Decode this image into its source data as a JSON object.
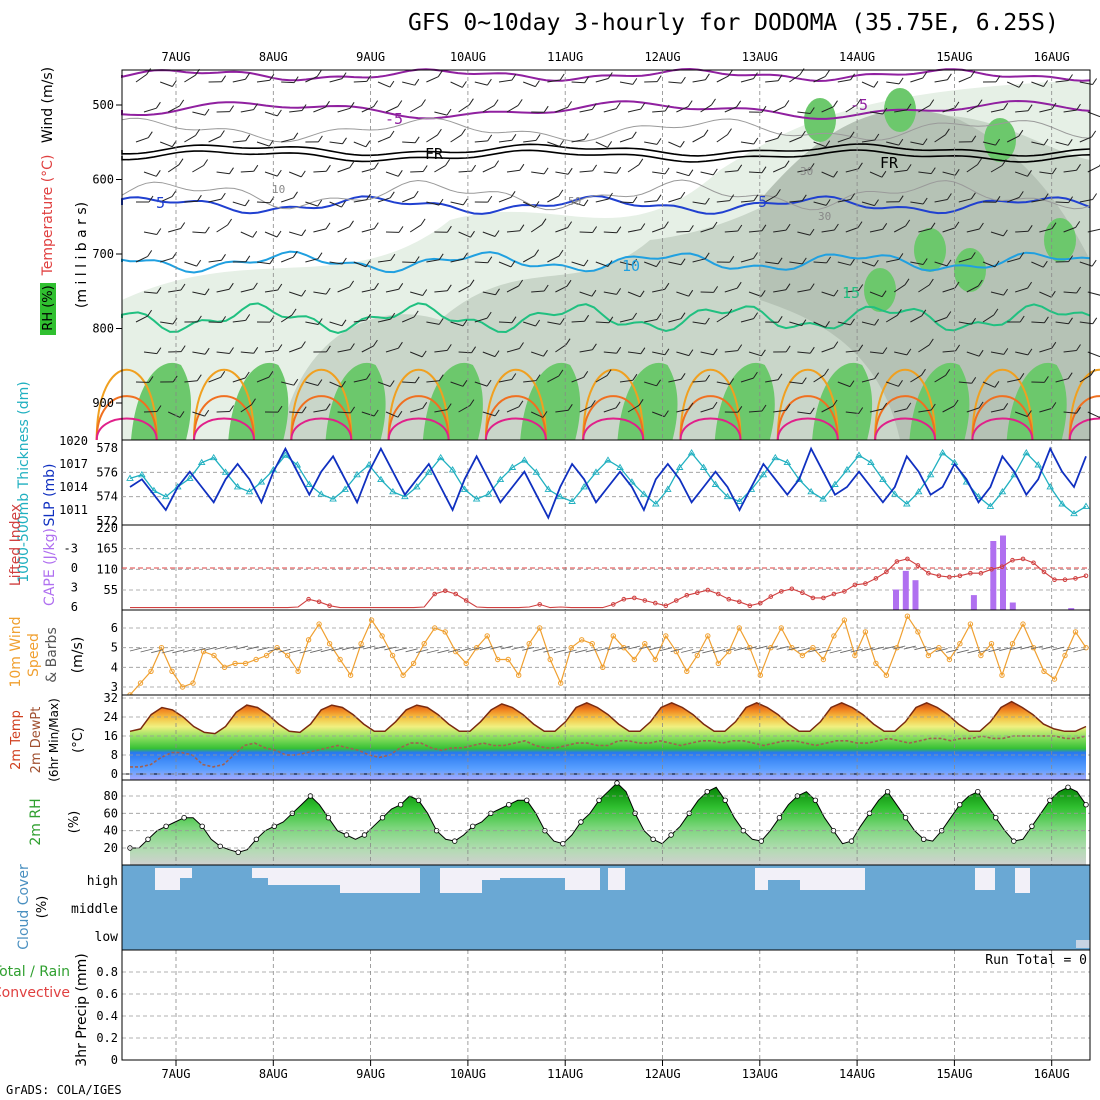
{
  "title": "GFS 0~10day 3-hourly for DODOMA (35.75E, 6.25S)",
  "credit": "GrADS: COLA/IGES",
  "dates": [
    "7AUG",
    "8AUG",
    "9AUG",
    "10AUG",
    "11AUG",
    "12AUG",
    "13AUG",
    "14AUG",
    "15AUG",
    "16AUG"
  ],
  "chart_data": [
    {
      "type": "heatmap",
      "name": "upper-air",
      "labels": {
        "wind": "Wind (m/s)",
        "temp": "Temperature (°C)",
        "rh": "RH (%)",
        "axis": "(m i l l i b a r s)"
      },
      "y_ticks": [
        "500",
        "600",
        "700",
        "800",
        "900"
      ],
      "contour_labels": [
        "-5",
        "-5",
        "FR",
        "FR",
        "5",
        "5",
        "10",
        "15",
        "10",
        "30",
        "30",
        "50"
      ],
      "ylim": [
        1000,
        450
      ]
    },
    {
      "type": "line",
      "name": "slp-thickness",
      "labels": {
        "thickness": "1000-500mb Thickness (dm)",
        "slp": "SLP (mb)"
      },
      "left_ticks": [
        "578",
        "576",
        "574",
        "572"
      ],
      "right_ticks": [
        "1020",
        "1017",
        "1014",
        "1011"
      ],
      "slp": [
        1014,
        1015,
        1013,
        1011,
        1014,
        1016,
        1014,
        1012,
        1015,
        1017,
        1015,
        1012,
        1016,
        1019,
        1016,
        1013,
        1016,
        1018,
        1015,
        1012,
        1016,
        1019,
        1016,
        1013,
        1015,
        1017,
        1014,
        1011,
        1015,
        1018,
        1015,
        1012,
        1014,
        1016,
        1013,
        1010,
        1014,
        1017,
        1015,
        1012,
        1014,
        1016,
        1014,
        1011,
        1015,
        1017,
        1015,
        1012,
        1014,
        1016,
        1014,
        1011,
        1014,
        1017,
        1015,
        1013,
        1015,
        1019,
        1016,
        1013,
        1014,
        1016,
        1014,
        1012,
        1014,
        1018,
        1016,
        1013,
        1014,
        1017,
        1015,
        1012,
        1014,
        1018,
        1016,
        1013,
        1015,
        1019,
        1016,
        1014,
        1018
      ],
      "thickness": [
        575.5,
        575.8,
        574.5,
        574,
        574.8,
        575.5,
        576.8,
        577.2,
        576,
        574.8,
        574.4,
        575.2,
        576.2,
        577.4,
        576.6,
        575,
        574.2,
        573.8,
        574.6,
        575.8,
        576.6,
        575.4,
        574.4,
        574,
        574.8,
        576,
        577.2,
        576.2,
        574.6,
        573.8,
        574.2,
        575.4,
        576.4,
        577,
        576,
        574.6,
        574,
        573.6,
        574.8,
        576,
        577,
        576.4,
        575.2,
        574.2,
        573.4,
        574.6,
        576.4,
        577.6,
        576.4,
        575,
        574,
        573.6,
        574.6,
        575.8,
        577.2,
        576.8,
        575.4,
        574.4,
        573.8,
        575,
        576.2,
        577.4,
        576.8,
        575.4,
        574.2,
        573.4,
        574.4,
        575.8,
        577.6,
        576.8,
        575.2,
        574,
        573.2,
        574.4,
        575.8,
        577.6,
        576.6,
        574.8,
        573.4,
        572.6,
        573.2
      ]
    },
    {
      "type": "bar",
      "name": "cape-lifted-index",
      "labels": {
        "li": "Lifted Index",
        "cape": "CAPE (J/kg)"
      },
      "left_ticks": [
        "-3",
        "0",
        "3",
        "6"
      ],
      "right_ticks": [
        "220",
        "165",
        "110",
        "55"
      ],
      "lifted_index": [
        8,
        8,
        8,
        8,
        8,
        8,
        8,
        8,
        8,
        8,
        8,
        8,
        8,
        8,
        8,
        8,
        6,
        4.8,
        5.2,
        5.8,
        7,
        8,
        8,
        8,
        8,
        8,
        8,
        8,
        6,
        4,
        3.5,
        4,
        5,
        6,
        7.5,
        8,
        8,
        8,
        6,
        5.6,
        6.2,
        6,
        8,
        8,
        8,
        8,
        5.6,
        4.8,
        4.6,
        5,
        5.4,
        5.8,
        5,
        4.2,
        3.8,
        3.4,
        4,
        4.8,
        5.2,
        5.8,
        5.4,
        4.4,
        3.6,
        3.2,
        3.8,
        4.6,
        4.6,
        4,
        3.6,
        2.6,
        2.4,
        1.6,
        0.6,
        -1,
        -1.4,
        -0.4,
        0.8,
        1.2,
        1.4,
        1.2,
        0.8,
        0.8,
        0.2,
        -0.2,
        -1.2,
        -1.4,
        -0.8,
        0.6,
        1.8,
        1.8,
        1.6,
        1.2
      ],
      "cape": [
        0,
        0,
        0,
        0,
        0,
        0,
        0,
        0,
        0,
        0,
        0,
        0,
        0,
        0,
        0,
        0,
        0,
        0,
        0,
        0,
        0,
        0,
        0,
        0,
        0,
        0,
        0,
        0,
        0,
        0,
        0,
        0,
        0,
        0,
        0,
        0,
        0,
        0,
        0,
        0,
        0,
        0,
        0,
        0,
        0,
        0,
        0,
        0,
        0,
        0,
        0,
        0,
        0,
        0,
        0,
        0,
        0,
        0,
        0,
        0,
        0,
        0,
        0,
        0,
        0,
        0,
        0,
        0,
        0,
        0,
        0,
        0,
        0,
        0,
        0,
        0,
        0,
        0,
        0,
        0,
        0,
        0,
        0,
        0,
        0,
        0,
        0,
        0,
        0,
        0,
        0,
        0,
        0,
        0,
        0,
        0,
        0,
        0,
        0,
        0,
        0,
        0,
        0,
        0,
        0,
        0,
        0,
        0,
        0,
        0,
        0,
        0,
        0,
        0,
        0,
        0,
        0,
        0,
        0,
        0,
        0,
        0,
        0,
        0,
        0,
        0,
        0,
        0,
        0,
        0,
        0,
        0,
        0,
        0,
        0,
        0,
        0,
        0,
        0,
        0,
        0,
        0,
        0,
        0,
        0,
        0,
        0,
        0
      ],
      "cape_bars": [
        {
          "day": 7.4,
          "v": 55
        },
        {
          "day": 7.5,
          "v": 105
        },
        {
          "day": 7.6,
          "v": 80
        },
        {
          "day": 8.2,
          "v": 40
        },
        {
          "day": 8.4,
          "v": 185
        },
        {
          "day": 8.5,
          "v": 200
        },
        {
          "day": 8.6,
          "v": 20
        },
        {
          "day": 9.2,
          "v": 5
        }
      ]
    },
    {
      "type": "line",
      "name": "wind-10m",
      "labels": {
        "wind": "10m Wind",
        "speed": "Speed",
        "barbs": "& Barbs",
        "units": "(m/s)"
      },
      "left_ticks": [
        "6",
        "5",
        "4",
        "3"
      ],
      "speed": [
        2.6,
        3.2,
        3.8,
        5,
        3.8,
        3,
        3.2,
        4.8,
        4.6,
        4,
        4.2,
        4.2,
        4.4,
        4.6,
        5,
        4.6,
        3.8,
        5.4,
        6.2,
        5.2,
        4.4,
        3.6,
        5.2,
        6.4,
        5.6,
        4.6,
        3.6,
        4.2,
        5.2,
        6,
        5.8,
        4.8,
        4.2,
        5,
        5.6,
        4.4,
        4.4,
        3.6,
        5.2,
        6,
        4.4,
        3.2,
        5,
        5.4,
        5.2,
        4,
        5.6,
        5,
        4.4,
        5.2,
        4.4,
        5.6,
        4.8,
        3.8,
        4.6,
        5.6,
        4.2,
        4.8,
        6,
        5,
        3.6,
        5,
        6,
        5,
        4.6,
        5,
        4.4,
        5.6,
        6.4,
        4.6,
        5.8,
        4.2,
        3.6,
        5,
        6.6,
        5.8,
        4.6,
        5,
        4.4,
        5.2,
        6.2,
        4.6,
        5.2,
        3.6,
        5.2,
        6.2,
        5,
        3.8,
        3.4,
        4.6,
        5.8,
        5
      ]
    },
    {
      "type": "area",
      "name": "temperature-2m",
      "labels": {
        "temp": "2m Temp",
        "dewpt": "2m DewPt",
        "minmax": "(6hr Min/Max)",
        "units": "(°C)"
      },
      "left_ticks": [
        "32",
        "24",
        "16",
        "8",
        "0"
      ],
      "ylim": [
        0,
        32
      ],
      "temp": [
        18,
        19,
        25,
        28,
        27,
        24,
        20,
        17.5,
        17,
        20,
        26,
        29,
        28,
        25,
        21,
        18,
        17.5,
        21,
        27,
        29,
        28,
        25,
        21,
        18,
        18,
        22,
        27,
        29,
        28,
        25,
        21,
        18,
        18,
        22,
        27,
        29.5,
        28,
        25,
        21,
        18,
        18,
        22,
        28,
        30,
        28,
        25,
        21,
        18,
        18,
        22,
        28,
        30,
        28,
        25,
        21,
        18,
        18,
        22,
        28,
        30,
        28,
        25,
        21,
        18,
        18,
        22,
        28,
        30,
        28,
        25,
        21,
        18,
        18,
        22,
        28,
        30,
        28,
        25,
        21,
        18,
        18,
        22,
        28,
        30.5,
        28,
        25,
        21,
        19,
        18,
        18,
        20
      ],
      "dewpt": [
        3,
        3,
        4,
        7,
        9,
        9,
        8,
        4,
        3,
        4,
        8,
        12,
        13,
        11,
        10,
        8,
        8,
        9,
        10,
        11,
        12,
        11,
        10,
        8,
        7,
        8,
        11,
        13,
        13,
        11,
        10,
        11,
        11,
        12,
        13,
        12,
        12,
        13,
        14,
        12,
        11,
        11,
        12,
        13,
        13,
        12,
        12,
        14,
        14,
        13,
        13,
        14,
        13,
        12,
        13,
        14,
        14,
        13,
        14,
        14,
        13,
        12,
        13,
        14,
        14,
        13,
        12,
        13,
        14,
        14,
        13,
        13,
        14,
        15,
        14,
        13,
        14,
        15,
        15,
        14,
        15,
        15,
        16,
        15,
        15,
        16,
        16,
        16,
        16,
        16,
        15,
        15,
        16
      ]
    },
    {
      "type": "area",
      "name": "rh-2m",
      "labels": {
        "rh": "2m RH",
        "units": "(%)"
      },
      "left_ticks": [
        "80",
        "60",
        "40",
        "20"
      ],
      "ylim": [
        0,
        100
      ],
      "rh": [
        20,
        20,
        30,
        40,
        45,
        50,
        55,
        55,
        45,
        30,
        22,
        18,
        15,
        18,
        30,
        40,
        45,
        50,
        60,
        70,
        80,
        70,
        55,
        40,
        35,
        30,
        35,
        45,
        55,
        65,
        70,
        80,
        75,
        60,
        40,
        30,
        28,
        35,
        45,
        50,
        60,
        65,
        70,
        75,
        75,
        60,
        40,
        28,
        25,
        35,
        50,
        60,
        75,
        85,
        95,
        85,
        60,
        40,
        30,
        25,
        35,
        45,
        60,
        75,
        85,
        90,
        75,
        55,
        40,
        30,
        28,
        40,
        55,
        70,
        80,
        85,
        75,
        55,
        40,
        25,
        28,
        45,
        60,
        75,
        85,
        70,
        55,
        40,
        30,
        28,
        40,
        55,
        70,
        80,
        85,
        70,
        55,
        40,
        28,
        30,
        45,
        60,
        75,
        85,
        90,
        85,
        70
      ]
    },
    {
      "type": "bar",
      "name": "cloud-cover",
      "labels": {
        "cloud": "Cloud Cover",
        "units": "(%)"
      },
      "left_ticks": [
        "high",
        "middle",
        "low"
      ]
    },
    {
      "type": "bar",
      "name": "precip-3hr",
      "labels": {
        "total": "Total / Rain",
        "conv": "Convective",
        "axis": "3hr Precip (mm)"
      },
      "left_ticks": [
        "0.8",
        "0.6",
        "0.4",
        "0.2",
        "0"
      ],
      "ylim": [
        0,
        1
      ],
      "run_total": "Run Total = 0",
      "values": []
    }
  ]
}
